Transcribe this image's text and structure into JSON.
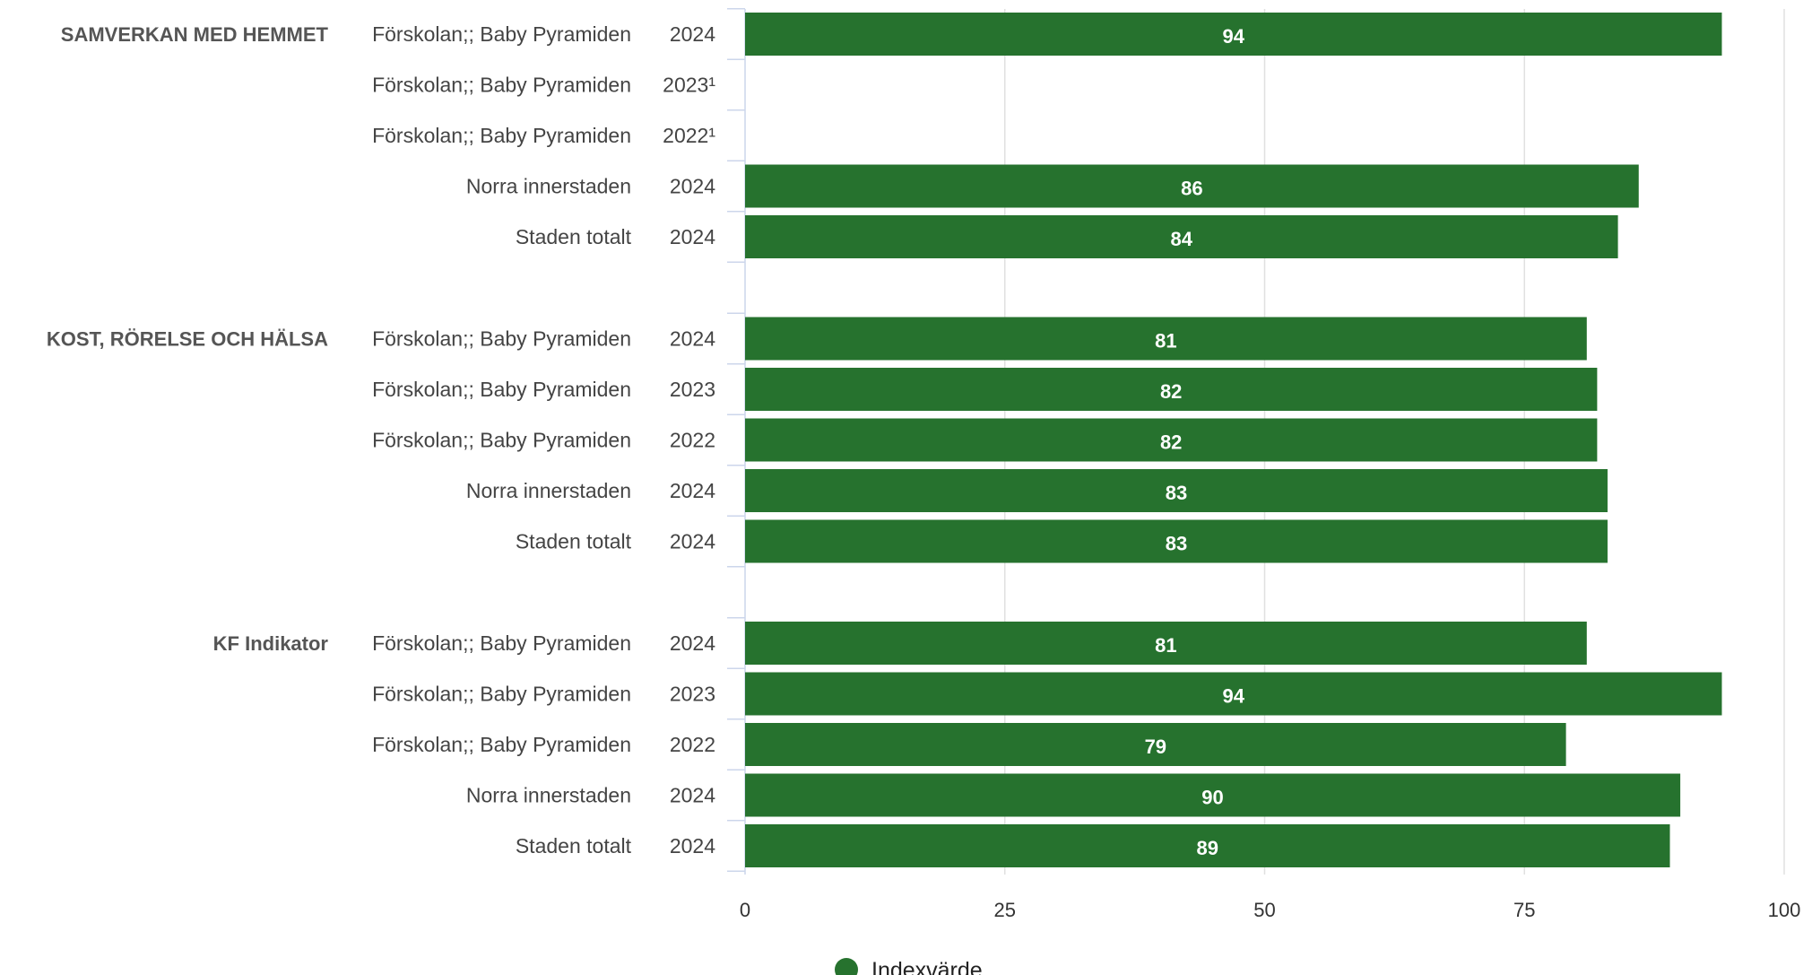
{
  "chart_data": {
    "type": "bar",
    "orientation": "horizontal",
    "xlim": [
      0,
      100
    ],
    "x_ticks": [
      0,
      25,
      50,
      75,
      100
    ],
    "grid": true,
    "legend_placement": "bottom-left",
    "series": [
      {
        "name": "Indexvärde",
        "color": "#26722e"
      }
    ],
    "groups": [
      {
        "label": "SAMVERKAN MED HEMMET",
        "rows": [
          {
            "category": "Förskolan;; Baby Pyramiden",
            "year": "2024",
            "value": 94,
            "value_label": "94"
          },
          {
            "category": "Förskolan;; Baby Pyramiden",
            "year": "2023¹",
            "value": null,
            "value_label": ""
          },
          {
            "category": "Förskolan;; Baby Pyramiden",
            "year": "2022¹",
            "value": null,
            "value_label": ""
          },
          {
            "category": "Norra innerstaden",
            "year": "2024",
            "value": 86,
            "value_label": "86"
          },
          {
            "category": "Staden totalt",
            "year": "2024",
            "value": 84,
            "value_label": "84"
          }
        ]
      },
      {
        "label": "KOST, RÖRELSE OCH HÄLSA",
        "rows": [
          {
            "category": "Förskolan;; Baby Pyramiden",
            "year": "2024",
            "value": 81,
            "value_label": "81"
          },
          {
            "category": "Förskolan;; Baby Pyramiden",
            "year": "2023",
            "value": 82,
            "value_label": "82"
          },
          {
            "category": "Förskolan;; Baby Pyramiden",
            "year": "2022",
            "value": 82,
            "value_label": "82"
          },
          {
            "category": "Norra innerstaden",
            "year": "2024",
            "value": 83,
            "value_label": "83"
          },
          {
            "category": "Staden totalt",
            "year": "2024",
            "value": 83,
            "value_label": "83"
          }
        ]
      },
      {
        "label": "KF Indikator",
        "rows": [
          {
            "category": "Förskolan;; Baby Pyramiden",
            "year": "2024",
            "value": 81,
            "value_label": "81"
          },
          {
            "category": "Förskolan;; Baby Pyramiden",
            "year": "2023",
            "value": 94,
            "value_label": "94"
          },
          {
            "category": "Förskolan;; Baby Pyramiden",
            "year": "2022",
            "value": 79,
            "value_label": "79"
          },
          {
            "category": "Norra innerstaden",
            "year": "2024",
            "value": 90,
            "value_label": "90"
          },
          {
            "category": "Staden totalt",
            "year": "2024",
            "value": 89,
            "value_label": "89"
          }
        ]
      }
    ]
  }
}
